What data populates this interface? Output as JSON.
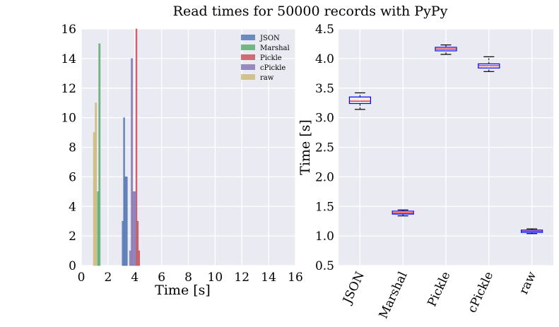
{
  "title": "Read times for 50000 records with PyPy",
  "chart_data": [
    {
      "type": "histogram",
      "xlabel": "Time [s]",
      "ylabel": "",
      "xlim": [
        0,
        16
      ],
      "ylim": [
        0,
        16
      ],
      "xticks": [
        0,
        2,
        4,
        6,
        8,
        10,
        12,
        14,
        16
      ],
      "yticks": [
        0,
        2,
        4,
        6,
        8,
        10,
        12,
        14,
        16
      ],
      "grid": true,
      "legend_position": "top-right",
      "series": [
        {
          "name": "JSON",
          "color": "#4c72b0",
          "bins": [
            {
              "x0": 3.05,
              "x1": 3.15,
              "count": 3
            },
            {
              "x0": 3.15,
              "x1": 3.25,
              "count": 10
            },
            {
              "x0": 3.25,
              "x1": 3.35,
              "count": 6
            },
            {
              "x0": 3.35,
              "x1": 3.45,
              "count": 6
            }
          ]
        },
        {
          "name": "Marshal",
          "color": "#55a868",
          "bins": [
            {
              "x0": 1.2,
              "x1": 1.3,
              "count": 5
            },
            {
              "x0": 1.3,
              "x1": 1.42,
              "count": 15
            }
          ]
        },
        {
          "name": "Pickle",
          "color": "#c44e52",
          "bins": [
            {
              "x0": 4.07,
              "x1": 4.17,
              "count": 16
            },
            {
              "x0": 4.17,
              "x1": 4.27,
              "count": 3
            },
            {
              "x0": 4.27,
              "x1": 4.37,
              "count": 1
            }
          ]
        },
        {
          "name": "cPickle",
          "color": "#8172b2",
          "bins": [
            {
              "x0": 3.6,
              "x1": 3.72,
              "count": 1
            },
            {
              "x0": 3.72,
              "x1": 3.84,
              "count": 14
            },
            {
              "x0": 3.84,
              "x1": 3.96,
              "count": 5
            },
            {
              "x0": 3.96,
              "x1": 4.08,
              "count": 5
            }
          ]
        },
        {
          "name": "raw",
          "color": "#ccb974",
          "bins": [
            {
              "x0": 0.9,
              "x1": 1.03,
              "count": 9
            },
            {
              "x0": 1.03,
              "x1": 1.15,
              "count": 11
            }
          ]
        }
      ]
    },
    {
      "type": "boxplot",
      "ylabel": "Time [s]",
      "ylim": [
        0.5,
        4.5
      ],
      "yticks": [
        "0.5",
        "1.0",
        "1.5",
        "2.0",
        "2.5",
        "3.0",
        "3.5",
        "4.0",
        "4.5"
      ],
      "grid": true,
      "categories": [
        "JSON",
        "Marshal",
        "Pickle",
        "cPickle",
        "raw"
      ],
      "boxes": [
        {
          "label": "JSON",
          "whislo": 3.14,
          "q1": 3.24,
          "med": 3.28,
          "q3": 3.35,
          "whishi": 3.42
        },
        {
          "label": "Marshal",
          "whislo": 1.34,
          "q1": 1.37,
          "med": 1.39,
          "q3": 1.42,
          "whishi": 1.44
        },
        {
          "label": "Pickle",
          "whislo": 4.07,
          "q1": 4.13,
          "med": 4.16,
          "q3": 4.19,
          "whishi": 4.23
        },
        {
          "label": "cPickle",
          "whislo": 3.78,
          "q1": 3.84,
          "med": 3.88,
          "q3": 3.91,
          "whishi": 4.03
        },
        {
          "label": "raw",
          "whislo": 1.04,
          "q1": 1.06,
          "med": 1.08,
          "q3": 1.1,
          "whishi": 1.12
        }
      ],
      "box_color": "#0000ff",
      "median_color": "#ff0000",
      "whisker_color": "#000000"
    }
  ]
}
